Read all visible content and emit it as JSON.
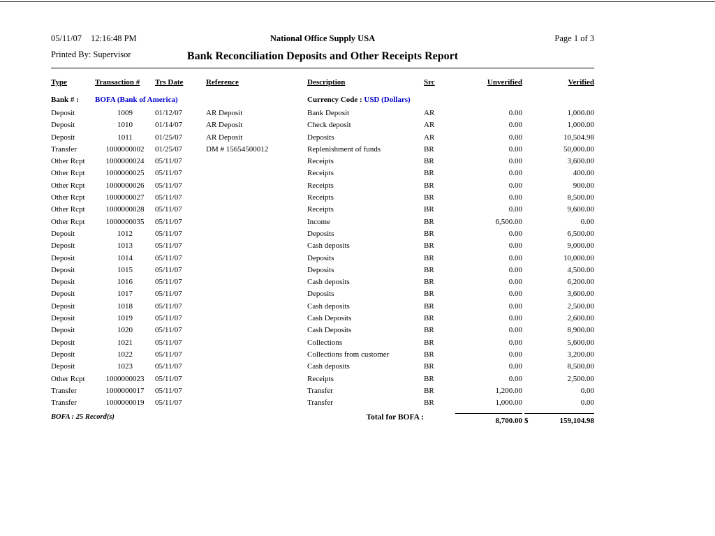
{
  "header": {
    "date": "05/11/07",
    "time": "12:16:48 PM",
    "company": "National Office Supply USA",
    "page": "Page 1 of 3",
    "printed_by_label": "Printed By:",
    "printed_by_value": "Supervisor",
    "title": "Bank Reconciliation Deposits and Other Receipts Report"
  },
  "colors": {
    "link_blue": "#0000cc",
    "text": "#000000",
    "background": "#ffffff"
  },
  "table": {
    "headers": [
      "Type",
      "Transaction #",
      "Trs Date",
      "Reference",
      "Description",
      "Src",
      "Unverified",
      "Verified"
    ],
    "bank": {
      "label": "Bank # :",
      "value": "BOFA (Bank of America)",
      "currency_label": "Currency Code :",
      "currency_value": "USD (Dollars)"
    },
    "rows": [
      [
        "Deposit",
        "1009",
        "01/12/07",
        "AR Deposit",
        "Bank Deposit",
        "AR",
        "0.00",
        "1,000.00"
      ],
      [
        "Deposit",
        "1010",
        "01/14/07",
        "AR Deposit",
        "Check deposit",
        "AR",
        "0.00",
        "1,000.00"
      ],
      [
        "Deposit",
        "1011",
        "01/25/07",
        "AR Deposit",
        "Deposits",
        "AR",
        "0.00",
        "10,504.98"
      ],
      [
        "Transfer",
        "1000000002",
        "01/25/07",
        "DM # 15654500012",
        "Replenishment of funds",
        "BR",
        "0.00",
        "50,000.00"
      ],
      [
        "Other Rcpt",
        "1000000024",
        "05/11/07",
        "",
        "Receipts",
        "BR",
        "0.00",
        "3,600.00"
      ],
      [
        "Other Rcpt",
        "1000000025",
        "05/11/07",
        "",
        "Receipts",
        "BR",
        "0.00",
        "400.00"
      ],
      [
        "Other Rcpt",
        "1000000026",
        "05/11/07",
        "",
        "Receipts",
        "BR",
        "0.00",
        "900.00"
      ],
      [
        "Other Rcpt",
        "1000000027",
        "05/11/07",
        "",
        "Receipts",
        "BR",
        "0.00",
        "8,500.00"
      ],
      [
        "Other Rcpt",
        "1000000028",
        "05/11/07",
        "",
        "Receipts",
        "BR",
        "0.00",
        "9,600.00"
      ],
      [
        "Other Rcpt",
        "1000000035",
        "05/11/07",
        "",
        "Income",
        "BR",
        "6,500.00",
        "0.00"
      ],
      [
        "Deposit",
        "1012",
        "05/11/07",
        "",
        "Deposits",
        "BR",
        "0.00",
        "6,500.00"
      ],
      [
        "Deposit",
        "1013",
        "05/11/07",
        "",
        "Cash deposits",
        "BR",
        "0.00",
        "9,000.00"
      ],
      [
        "Deposit",
        "1014",
        "05/11/07",
        "",
        "Deposits",
        "BR",
        "0.00",
        "10,000.00"
      ],
      [
        "Deposit",
        "1015",
        "05/11/07",
        "",
        "Deposits",
        "BR",
        "0.00",
        "4,500.00"
      ],
      [
        "Deposit",
        "1016",
        "05/11/07",
        "",
        "Cash deposits",
        "BR",
        "0.00",
        "6,200.00"
      ],
      [
        "Deposit",
        "1017",
        "05/11/07",
        "",
        "Deposits",
        "BR",
        "0.00",
        "3,600.00"
      ],
      [
        "Deposit",
        "1018",
        "05/11/07",
        "",
        "Cash deposits",
        "BR",
        "0.00",
        "2,500.00"
      ],
      [
        "Deposit",
        "1019",
        "05/11/07",
        "",
        "Cash Deposits",
        "BR",
        "0.00",
        "2,600.00"
      ],
      [
        "Deposit",
        "1020",
        "05/11/07",
        "",
        "Cash Deposits",
        "BR",
        "0.00",
        "8,900.00"
      ],
      [
        "Deposit",
        "1021",
        "05/11/07",
        "",
        "Collections",
        "BR",
        "0.00",
        "5,600.00"
      ],
      [
        "Deposit",
        "1022",
        "05/11/07",
        "",
        "Collections from customer",
        "BR",
        "0.00",
        "3,200.00"
      ],
      [
        "Deposit",
        "1023",
        "05/11/07",
        "",
        "Cash deposits",
        "BR",
        "0.00",
        "8,500.00"
      ],
      [
        "Other Rcpt",
        "1000000023",
        "05/11/07",
        "",
        "Receipts",
        "BR",
        "0.00",
        "2,500.00"
      ],
      [
        "Transfer",
        "1000000017",
        "05/11/07",
        "",
        "Transfer",
        "BR",
        "1,200.00",
        "0.00"
      ],
      [
        "Transfer",
        "1000000019",
        "05/11/07",
        "",
        "Transfer",
        "BR",
        "1,000.00",
        "0.00"
      ]
    ],
    "footer": {
      "record_count": "BOFA : 25 Record(s)",
      "total_label": "Total for BOFA :",
      "currency_symbol": "$",
      "total_unverified": "8,700.00",
      "total_verified": "159,104.98"
    }
  }
}
